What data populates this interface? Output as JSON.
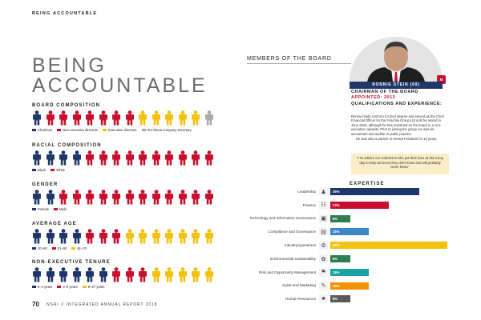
{
  "header": {
    "section_tag": "BEING ACCOUNTABLE"
  },
  "title": {
    "line1": "BEING",
    "line2": "ACCOUNTABLE"
  },
  "colors": {
    "navy": "#1f3768",
    "red": "#c8102e",
    "yellow": "#f4c20d",
    "grey": "#a7a9ac",
    "teal": "#1aa3a3",
    "blue": "#3a87c9",
    "green": "#2e7d4f",
    "orange": "#f39200",
    "darkgreen": "#2f5d4a",
    "dark": "#5a5a5a"
  },
  "board_composition": {
    "title": "BOARD COMPOSITION",
    "people": [
      "#1f3768",
      "#c8102e",
      "#c8102e",
      "#c8102e",
      "#c8102e",
      "#c8102e",
      "#c8102e",
      "#c8102e",
      "#f4c20d",
      "#f4c20d",
      "#f4c20d",
      "#f4c20d",
      "#f4c20d",
      "#a7a9ac"
    ],
    "legend": [
      {
        "label": "Chairman",
        "color": "#1f3768"
      },
      {
        "label": "Non-executive directors",
        "color": "#c8102e"
      },
      {
        "label": "Executive directors",
        "color": "#f4c20d"
      },
      {
        "label": "Pro-forma company secretary",
        "color": "#a7a9ac"
      }
    ]
  },
  "racial_composition": {
    "title": "RACIAL COMPOSITION",
    "people": [
      "#1f3768",
      "#1f3768",
      "#1f3768",
      "#1f3768",
      "#c8102e",
      "#c8102e",
      "#c8102e",
      "#c8102e",
      "#c8102e",
      "#c8102e",
      "#c8102e",
      "#c8102e",
      "#c8102e",
      "#c8102e"
    ],
    "legend": [
      {
        "label": "Black",
        "color": "#1f3768"
      },
      {
        "label": "White",
        "color": "#c8102e"
      }
    ]
  },
  "gender": {
    "title": "GENDER",
    "people": [
      "#1f3768",
      "#1f3768",
      "#c8102e",
      "#c8102e",
      "#c8102e",
      "#c8102e",
      "#c8102e",
      "#c8102e",
      "#c8102e",
      "#c8102e",
      "#c8102e",
      "#c8102e",
      "#c8102e",
      "#c8102e"
    ],
    "legend": [
      {
        "label": "Female",
        "color": "#1f3768"
      },
      {
        "label": "Male",
        "color": "#c8102e"
      }
    ]
  },
  "average_age": {
    "title": "AVERAGE AGE",
    "people": [
      "#1f3768",
      "#1f3768",
      "#1f3768",
      "#1f3768",
      "#c8102e",
      "#c8102e",
      "#c8102e",
      "#f4c20d",
      "#f4c20d",
      "#f4c20d",
      "#f4c20d",
      "#f4c20d",
      "#f4c20d",
      "#f4c20d"
    ],
    "legend": [
      {
        "label": "40–50",
        "color": "#1f3768"
      },
      {
        "label": "51–60",
        "color": "#c8102e"
      },
      {
        "label": "61–70",
        "color": "#f4c20d"
      }
    ]
  },
  "tenure": {
    "title": "NON-EXECUTIVE TENURE",
    "people": [
      "#1f3768",
      "#1f3768",
      "#1f3768",
      "#1f3768",
      "#1f3768",
      "#1f3768",
      "#c8102e",
      "#c8102e",
      "#c8102e",
      "#f4c20d",
      "#f4c20d",
      "#f4c20d",
      "#f4c20d",
      "#f4c20d"
    ],
    "legend": [
      {
        "label": "0–4 years",
        "color": "#1f3768"
      },
      {
        "label": "4–9 years",
        "color": "#c8102e"
      },
      {
        "label": "9–27 years",
        "color": "#f4c20d"
      }
    ]
  },
  "board": {
    "header": "MEMBERS OF THE BOARD",
    "name": "RONNIE STEIN (69)",
    "badge": "M",
    "role": "CHAIRMAN OF THE BOARD",
    "appointed": "APPOINTED: 2013",
    "qual_title": "QUALIFICATIONS AND EXPERIENCE:",
    "bio1": "Ronnie holds a BCom CA(SA) degree and served as the Chief Financial Officer for the Foschini Group Ltd until he retired in June 2015, although he has remained on the board in a non-executive capacity. Prior to joining the group, he was an accountant and auditor in public practice.",
    "bio2": "He was also a partner in Kessel Feinstein for 15 years.",
    "quote": "\"I so admire our volunteers who put their lives at risk every day to help someone they don't know and will probably never know.\""
  },
  "expertise": {
    "title": "EXPERTISE",
    "rows": [
      {
        "label": "Leadership",
        "value": 35,
        "text": "35%",
        "color": "#1f3768",
        "icon": "leadership-icon",
        "glyph": "♟"
      },
      {
        "label": "Finance",
        "value": 23,
        "text": "23%",
        "color": "#c8102e",
        "icon": "finance-icon",
        "glyph": "☷"
      },
      {
        "label": "Technology and Information Governance",
        "value": 8,
        "text": "8%",
        "color": "#2e7d4f",
        "icon": "technology-icon",
        "glyph": "▣"
      },
      {
        "label": "Compliance and Governance",
        "value": 15,
        "text": "15%",
        "color": "#3a87c9",
        "icon": "compliance-icon",
        "glyph": "▤"
      },
      {
        "label": "Industry/operations",
        "value": 46,
        "text": "46%",
        "color": "#f4c20d",
        "icon": "industry-icon",
        "glyph": "⚙"
      },
      {
        "label": "Environmental sustainability",
        "value": 8,
        "text": "8%",
        "color": "#2e7d4f",
        "icon": "sustainability-icon",
        "glyph": "✿"
      },
      {
        "label": "Risk and Opportunity Management",
        "value": 15,
        "text": "15%",
        "color": "#1aa3a3",
        "icon": "risk-icon",
        "glyph": "⚑"
      },
      {
        "label": "Sales and Marketing",
        "value": 15,
        "text": "15%",
        "color": "#f39200",
        "icon": "sales-icon",
        "glyph": "✎"
      },
      {
        "label": "Human Resources",
        "value": 8,
        "text": "8%",
        "color": "#5a5a5a",
        "icon": "hr-icon",
        "glyph": "♣"
      }
    ]
  },
  "footer": {
    "page_number": "70",
    "text": "NSRI // INTEGRATED ANNUAL REPORT 2018"
  }
}
